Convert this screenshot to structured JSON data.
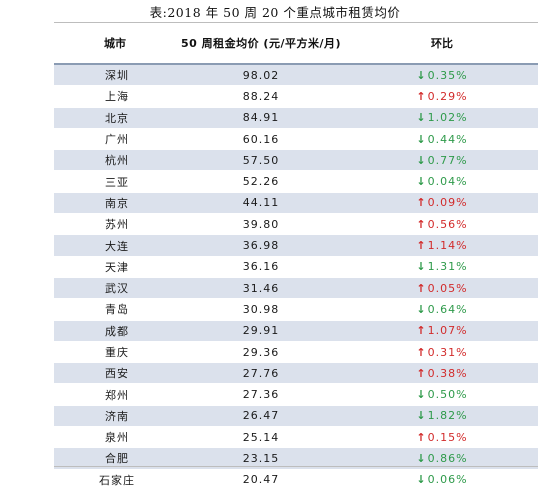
{
  "title": "表:2018 年 50 周 20 个重点城市租赁均价",
  "headers": {
    "city": "城市",
    "price": "50 周租金均价 (元/平方米/月)",
    "change": "环比"
  },
  "colors": {
    "down": "#2e9a4a",
    "up": "#d22b2b",
    "stripe": "#dbe1ec"
  },
  "rows": [
    {
      "city": "深圳",
      "price": "98.02",
      "dir": "down",
      "arrow": "↓",
      "change": "0.35%"
    },
    {
      "city": "上海",
      "price": "88.24",
      "dir": "up",
      "arrow": "↑",
      "change": "0.29%"
    },
    {
      "city": "北京",
      "price": "84.91",
      "dir": "down",
      "arrow": "↓",
      "change": "1.02%"
    },
    {
      "city": "广州",
      "price": "60.16",
      "dir": "down",
      "arrow": "↓",
      "change": "0.44%"
    },
    {
      "city": "杭州",
      "price": "57.50",
      "dir": "down",
      "arrow": "↓",
      "change": "0.77%"
    },
    {
      "city": "三亚",
      "price": "52.26",
      "dir": "down",
      "arrow": "↓",
      "change": "0.04%"
    },
    {
      "city": "南京",
      "price": "44.11",
      "dir": "up",
      "arrow": "↑",
      "change": "0.09%"
    },
    {
      "city": "苏州",
      "price": "39.80",
      "dir": "up",
      "arrow": "↑",
      "change": "0.56%"
    },
    {
      "city": "大连",
      "price": "36.98",
      "dir": "up",
      "arrow": "↑",
      "change": "1.14%"
    },
    {
      "city": "天津",
      "price": "36.16",
      "dir": "down",
      "arrow": "↓",
      "change": "1.31%"
    },
    {
      "city": "武汉",
      "price": "31.46",
      "dir": "up",
      "arrow": "↑",
      "change": "0.05%"
    },
    {
      "city": "青岛",
      "price": "30.98",
      "dir": "down",
      "arrow": "↓",
      "change": "0.64%"
    },
    {
      "city": "成都",
      "price": "29.91",
      "dir": "up",
      "arrow": "↑",
      "change": "1.07%"
    },
    {
      "city": "重庆",
      "price": "29.36",
      "dir": "up",
      "arrow": "↑",
      "change": "0.31%"
    },
    {
      "city": "西安",
      "price": "27.76",
      "dir": "up",
      "arrow": "↑",
      "change": "0.38%"
    },
    {
      "city": "郑州",
      "price": "27.36",
      "dir": "down",
      "arrow": "↓",
      "change": "0.50%"
    },
    {
      "city": "济南",
      "price": "26.47",
      "dir": "down",
      "arrow": "↓",
      "change": "1.82%"
    },
    {
      "city": "泉州",
      "price": "25.14",
      "dir": "up",
      "arrow": "↑",
      "change": "0.15%"
    },
    {
      "city": "合肥",
      "price": "23.15",
      "dir": "down",
      "arrow": "↓",
      "change": "0.86%"
    },
    {
      "city": "石家庄",
      "price": "20.47",
      "dir": "down",
      "arrow": "↓",
      "change": "0.06%"
    }
  ]
}
